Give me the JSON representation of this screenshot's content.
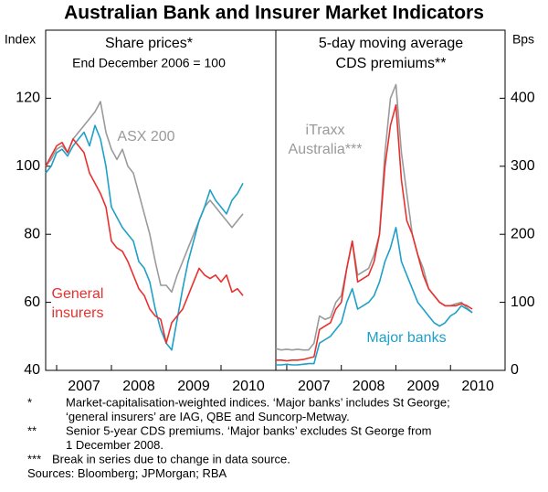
{
  "title": "Australian Bank and Insurer Market Indicators",
  "chart_data": [
    {
      "type": "line",
      "title": "Share prices*",
      "subtitle": "End December 2006 = 100",
      "ylabel": "Index",
      "x": [
        2006.8,
        2006.9,
        2007.0,
        2007.1,
        2007.2,
        2007.3,
        2007.4,
        2007.5,
        2007.6,
        2007.7,
        2007.8,
        2007.9,
        2008.0,
        2008.1,
        2008.2,
        2008.3,
        2008.4,
        2008.5,
        2008.6,
        2008.7,
        2008.8,
        2008.9,
        2009.0,
        2009.1,
        2009.2,
        2009.3,
        2009.4,
        2009.5,
        2009.6,
        2009.7,
        2009.8,
        2009.9,
        2010.0,
        2010.1,
        2010.2,
        2010.3,
        2010.4
      ],
      "xlim": [
        2006.8,
        2011.0
      ],
      "xticks": [
        2007,
        2008,
        2009,
        2010
      ],
      "ylim": [
        40,
        140
      ],
      "yticks": [
        40,
        60,
        80,
        100,
        120
      ],
      "series": [
        {
          "color": "#9a9a9a",
          "values": [
            100,
            102,
            105,
            106,
            104,
            108,
            110,
            112,
            114,
            116,
            119,
            110,
            105,
            102,
            105,
            100,
            98,
            92,
            86,
            80,
            72,
            65,
            65,
            63,
            68,
            72,
            76,
            80,
            84,
            88,
            90,
            88,
            86,
            84,
            82,
            84,
            86
          ]
        },
        {
          "color": "#1ea0c8",
          "values": [
            98,
            100,
            104,
            105,
            103,
            106,
            108,
            110,
            106,
            112,
            108,
            100,
            88,
            85,
            82,
            80,
            78,
            72,
            70,
            66,
            58,
            52,
            48,
            46,
            55,
            64,
            72,
            78,
            84,
            88,
            93,
            90,
            88,
            86,
            90,
            92,
            95
          ]
        },
        {
          "color": "#e8312f",
          "values": [
            100,
            103,
            106,
            107,
            104,
            108,
            106,
            104,
            98,
            95,
            92,
            88,
            78,
            76,
            75,
            72,
            68,
            64,
            62,
            58,
            56,
            55,
            48,
            54,
            56,
            58,
            62,
            66,
            70,
            68,
            67,
            68,
            66,
            68,
            63,
            64,
            62
          ]
        }
      ],
      "annotations": [
        {
          "lines": [
            "ASX 200"
          ],
          "color": "#9a9a9a"
        },
        {
          "lines": [
            "General",
            "insurers"
          ],
          "color": "#e8312f"
        }
      ]
    },
    {
      "type": "line",
      "title": "5-day moving average",
      "subtitle": "CDS premiums**",
      "ylabel": "Bps",
      "x": [
        2006.8,
        2006.9,
        2007.0,
        2007.1,
        2007.2,
        2007.3,
        2007.4,
        2007.5,
        2007.6,
        2007.7,
        2007.8,
        2007.9,
        2008.0,
        2008.1,
        2008.2,
        2008.3,
        2008.4,
        2008.5,
        2008.6,
        2008.7,
        2008.8,
        2008.9,
        2009.0,
        2009.1,
        2009.2,
        2009.3,
        2009.4,
        2009.5,
        2009.6,
        2009.7,
        2009.8,
        2009.9,
        2010.0,
        2010.1,
        2010.2,
        2010.3,
        2010.4
      ],
      "xlim": [
        2006.8,
        2011.0
      ],
      "xticks": [
        2007,
        2008,
        2009,
        2010
      ],
      "y2lim": [
        0,
        500
      ],
      "y2ticks": [
        0,
        100,
        200,
        300,
        400
      ],
      "series": [
        {
          "axis": "y2",
          "color": "#9a9a9a",
          "values": [
            32,
            30,
            31,
            30,
            31,
            30,
            30,
            40,
            80,
            75,
            78,
            100,
            110,
            150,
            190,
            140,
            145,
            150,
            170,
            200,
            320,
            400,
            420,
            320,
            260,
            200,
            170,
            150,
            120,
            110,
            100,
            95,
            95,
            98,
            100,
            92,
            85
          ]
        },
        {
          "axis": "y2",
          "color": "#e8312f",
          "values": [
            15,
            15,
            14,
            15,
            15,
            16,
            18,
            20,
            60,
            65,
            70,
            90,
            100,
            150,
            190,
            130,
            135,
            140,
            160,
            200,
            300,
            360,
            390,
            280,
            220,
            200,
            170,
            140,
            120,
            110,
            100,
            95,
            95,
            95,
            98,
            95,
            90
          ]
        },
        {
          "axis": "y2",
          "color": "#1ea0c8",
          "values": [
            8,
            8,
            9,
            8,
            8,
            9,
            10,
            10,
            40,
            45,
            50,
            60,
            70,
            100,
            120,
            90,
            95,
            100,
            110,
            130,
            160,
            180,
            210,
            160,
            140,
            120,
            100,
            90,
            80,
            70,
            65,
            70,
            80,
            85,
            95,
            90,
            85
          ]
        }
      ],
      "annotations": [
        {
          "lines": [
            "iTraxx",
            "Australia***"
          ],
          "color": "#9a9a9a"
        },
        {
          "lines": [
            "Major banks"
          ],
          "color": "#1ea0c8"
        }
      ]
    }
  ],
  "notes": [
    {
      "marker": "*",
      "lines": [
        "Market-capitalisation-weighted indices. ‘Major banks’ includes St George;",
        "‘general insurers’ are IAG, QBE and Suncorp-Metway."
      ]
    },
    {
      "marker": "**",
      "lines": [
        "Senior 5-year CDS premiums. ‘Major banks’ excludes St George from",
        "1 December 2008."
      ]
    },
    {
      "marker": "***",
      "lines": [
        "Break in series due to change in data source."
      ]
    }
  ],
  "sources": "Sources: Bloomberg; JPMorgan; RBA"
}
